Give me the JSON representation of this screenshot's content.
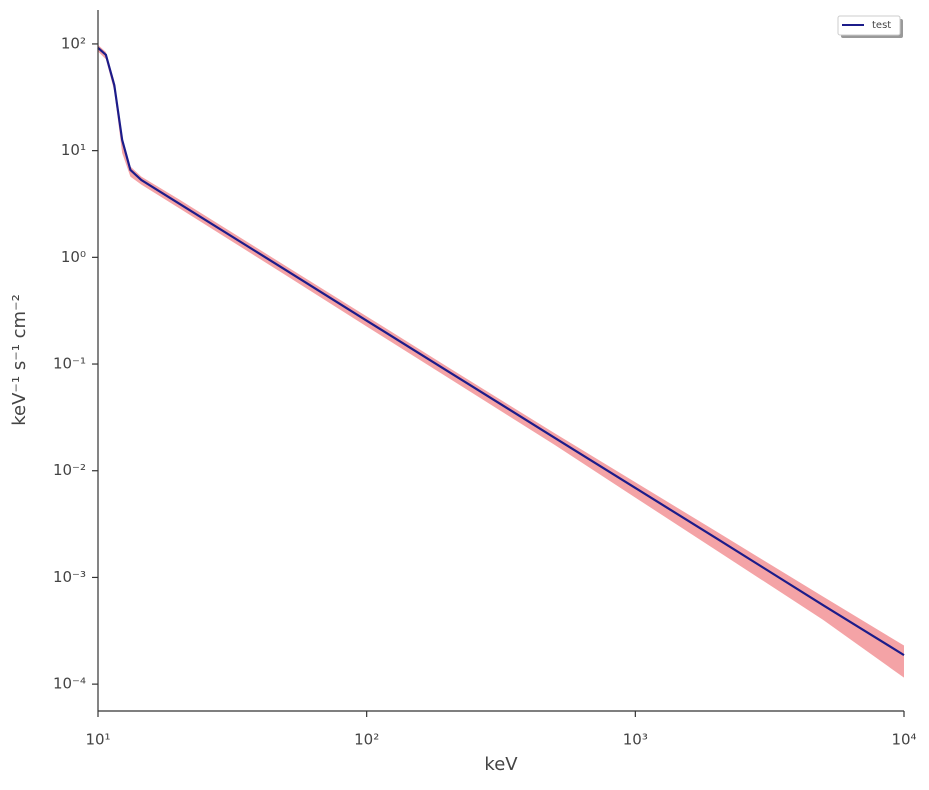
{
  "chart_data": {
    "type": "line",
    "xlabel": "keV",
    "ylabel": "keV⁻¹ s⁻¹ cm⁻²",
    "xscale": "log",
    "yscale": "log",
    "x": [
      10,
      10.7,
      11.5,
      12.3,
      13.2,
      14.5,
      20,
      50,
      100,
      200,
      500,
      1000,
      2000,
      5000,
      10000
    ],
    "series": [
      {
        "name": "test",
        "color": "#1c1c8a",
        "values": [
          92,
          79,
          41,
          12.6,
          6.6,
          5.3,
          3.2,
          0.76,
          0.255,
          0.086,
          0.0204,
          0.0069,
          0.00233,
          0.00055,
          0.000187
        ]
      }
    ],
    "band": {
      "color": "#f4a3a6",
      "lower": [
        85,
        72,
        36,
        9.5,
        5.7,
        4.8,
        2.9,
        0.68,
        0.225,
        0.075,
        0.0175,
        0.0056,
        0.0018,
        0.0004,
        0.000115
      ],
      "upper": [
        98,
        84,
        45,
        13.5,
        7.1,
        5.7,
        3.5,
        0.83,
        0.28,
        0.094,
        0.0225,
        0.0078,
        0.0027,
        0.00066,
        0.00023
      ]
    },
    "xlim": [
      10,
      10000
    ],
    "ylim": [
      5.6e-05,
      208
    ],
    "xticks": [
      {
        "value": 10,
        "label": "10¹"
      },
      {
        "value": 100,
        "label": "10²"
      },
      {
        "value": 1000,
        "label": "10³"
      },
      {
        "value": 10000,
        "label": "10⁴"
      }
    ],
    "yticks": [
      {
        "value": 0.0001,
        "label": "10⁻⁴"
      },
      {
        "value": 0.001,
        "label": "10⁻³"
      },
      {
        "value": 0.01,
        "label": "10⁻²"
      },
      {
        "value": 0.1,
        "label": "10⁻¹"
      },
      {
        "value": 1,
        "label": "10⁰"
      },
      {
        "value": 10,
        "label": "10¹"
      },
      {
        "value": 100,
        "label": "10²"
      }
    ],
    "legend": "upper right"
  }
}
